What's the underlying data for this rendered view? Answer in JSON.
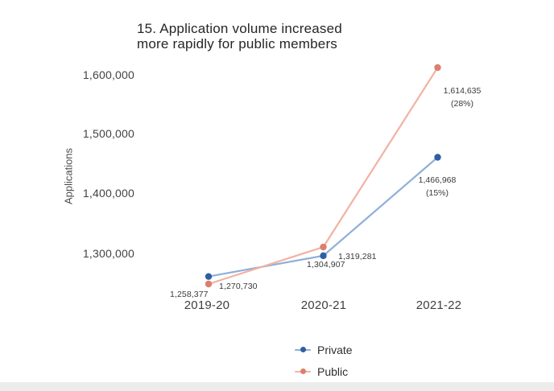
{
  "chart_data": {
    "type": "line",
    "title": "15. Application volume increased more rapidly for public members",
    "title_lines": [
      "15. Application volume increased",
      "more rapidly for public members"
    ],
    "xlabel": "",
    "ylabel": "Applications",
    "categories": [
      "2019-20",
      "2020-21",
      "2021-22"
    ],
    "y_ticks": [
      "1,600,000",
      "1,500,000",
      "1,400,000",
      "1,300,000"
    ],
    "ylim": [
      1250000,
      1620000
    ],
    "grid": false,
    "legend_position": "bottom-center",
    "series": [
      {
        "name": "Private",
        "dot_color": "#2e5fa3",
        "line_color": "#8fafd9",
        "values": [
          1270730,
          1304907,
          1466968
        ],
        "point_labels": [
          "1,270,730",
          "1,304,907",
          "1,466,968"
        ],
        "growth_label": "(15%)"
      },
      {
        "name": "Public",
        "dot_color": "#dd7f6b",
        "line_color": "#f2b2a2",
        "values": [
          1258377,
          1319281,
          1614635
        ],
        "point_labels": [
          "1,258,377",
          "1,319,281",
          "1,614,635"
        ],
        "growth_label": "(28%)"
      }
    ]
  }
}
